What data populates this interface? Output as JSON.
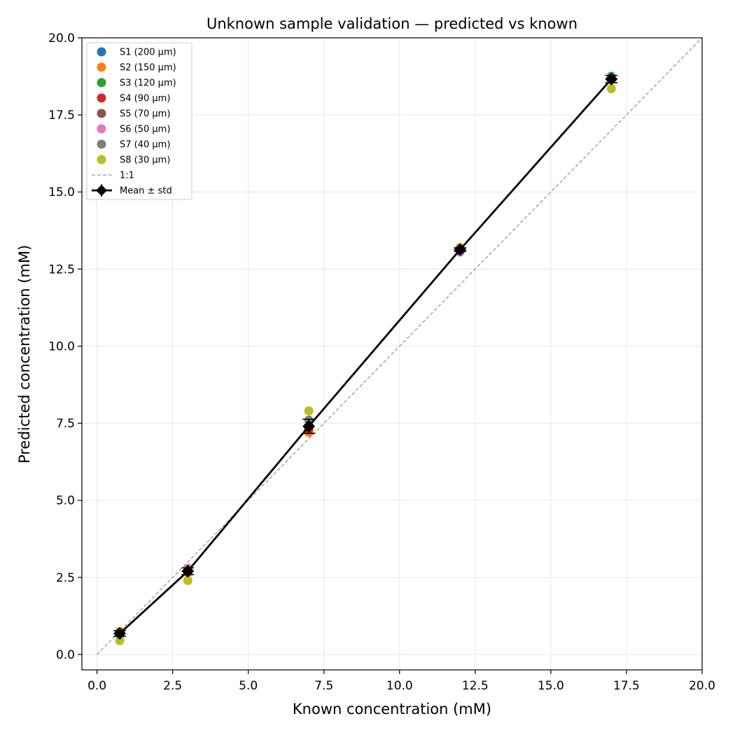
{
  "chart_data": {
    "type": "scatter",
    "title": "Unknown sample validation — predicted vs known",
    "xlabel": "Known concentration (mM)",
    "ylabel": "Predicted concentration (mM)",
    "xlim": [
      -0.5,
      20.0
    ],
    "ylim": [
      -0.5,
      20.0
    ],
    "xticks": [
      0.0,
      2.5,
      5.0,
      7.5,
      10.0,
      12.5,
      15.0,
      17.5,
      20.0
    ],
    "yticks": [
      0.0,
      2.5,
      5.0,
      7.5,
      10.0,
      12.5,
      15.0,
      17.5,
      20.0
    ],
    "xtick_labels": [
      "0.0",
      "2.5",
      "5.0",
      "7.5",
      "10.0",
      "12.5",
      "15.0",
      "17.5",
      "20.0"
    ],
    "ytick_labels": [
      "0.0",
      "2.5",
      "5.0",
      "7.5",
      "10.0",
      "12.5",
      "15.0",
      "17.5",
      "20.0"
    ],
    "grid": true,
    "legend_position": "top-left",
    "x": [
      0.75,
      3.0,
      7.0,
      12.0,
      17.0
    ],
    "series": [
      {
        "name": "S1 (200 µm)",
        "color": "#1f77b4",
        "values": [
          0.7,
          2.7,
          7.3,
          13.1,
          18.7
        ]
      },
      {
        "name": "S2 (150 µm)",
        "color": "#ff7f0e",
        "values": [
          0.75,
          2.65,
          7.2,
          13.15,
          18.65
        ]
      },
      {
        "name": "S3 (120 µm)",
        "color": "#2ca02c",
        "values": [
          0.7,
          2.7,
          7.35,
          13.2,
          18.75
        ]
      },
      {
        "name": "S4 (90 µm)",
        "color": "#d62728",
        "values": [
          0.7,
          2.7,
          7.3,
          13.1,
          18.7
        ]
      },
      {
        "name": "S5 (70 µm)",
        "color": "#8c564b",
        "values": [
          0.7,
          2.75,
          7.4,
          13.1,
          18.7
        ]
      },
      {
        "name": "S6 (50 µm)",
        "color": "#e377c2",
        "values": [
          0.7,
          2.8,
          7.4,
          13.05,
          18.7
        ]
      },
      {
        "name": "S7 (40 µm)",
        "color": "#7f7f7f",
        "values": [
          0.65,
          2.7,
          7.6,
          13.1,
          18.7
        ]
      },
      {
        "name": "S8 (30 µm)",
        "color": "#bcbd22",
        "values": [
          0.45,
          2.4,
          7.9,
          13.2,
          18.35
        ]
      }
    ],
    "reference_line": {
      "name": "1:1",
      "color": "#999999",
      "from": [
        0,
        0
      ],
      "to": [
        20,
        20
      ]
    },
    "mean": {
      "name": "Mean ± std",
      "color": "#000000",
      "values": [
        0.68,
        2.7,
        7.4,
        13.13,
        18.66
      ],
      "std": [
        0.09,
        0.11,
        0.23,
        0.06,
        0.12
      ]
    }
  }
}
